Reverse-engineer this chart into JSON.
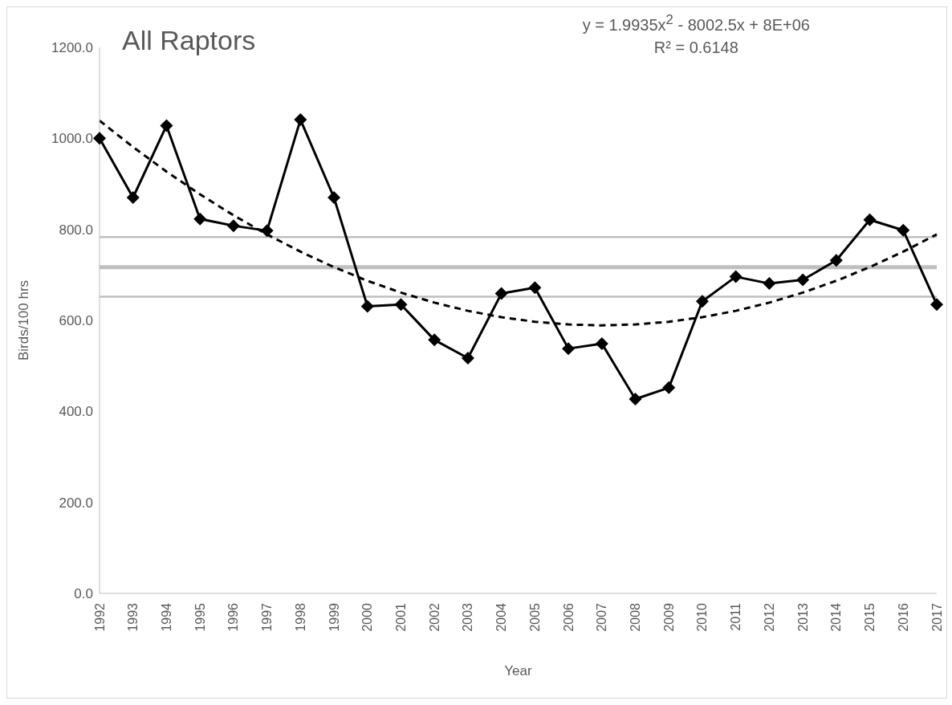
{
  "chart_data": {
    "type": "line",
    "title": "All Raptors",
    "xlabel": "Year",
    "ylabel": "Birds/100 hrs",
    "categories": [
      "1992",
      "1993",
      "1994",
      "1995",
      "1996",
      "1997",
      "1998",
      "1999",
      "2000",
      "2001",
      "2002",
      "2003",
      "2004",
      "2005",
      "2006",
      "2007",
      "2008",
      "2009",
      "2010",
      "2011",
      "2012",
      "2013",
      "2014",
      "2015",
      "2016",
      "2017"
    ],
    "series": [
      {
        "color": "#000000",
        "marker": "diamond",
        "line_style": "solid",
        "values": [
          1000,
          870,
          1028,
          823,
          808,
          797,
          1041,
          870,
          631,
          635,
          557,
          517,
          659,
          672,
          538,
          549,
          427,
          452,
          642,
          696,
          681,
          689,
          732,
          821,
          798,
          635
        ]
      },
      {
        "color": "#000000",
        "marker": "none",
        "line_style": "dashed",
        "values": [
          1039,
          981,
          927,
          877,
          831,
          789,
          751,
          717,
          687,
          661,
          639,
          621,
          607,
          597,
          591,
          589,
          591,
          597,
          607,
          621,
          639,
          661,
          687,
          717,
          751,
          789
        ]
      }
    ],
    "ylim": [
      0,
      1200
    ],
    "yticks": [
      {
        "value": 0,
        "label": "0.0"
      },
      {
        "value": 200,
        "label": "200.0"
      },
      {
        "value": 400,
        "label": "400.0"
      },
      {
        "value": 600,
        "label": "600.0"
      },
      {
        "value": 800,
        "label": "800.0"
      },
      {
        "value": 1000,
        "label": "1000.0"
      },
      {
        "value": 1200,
        "label": "1200.0"
      }
    ],
    "ref_lines": [
      {
        "axis": "y",
        "value": 783,
        "color": "#bfbfbf"
      },
      {
        "axis": "y",
        "value": 717,
        "color": "#bfbfbf"
      },
      {
        "axis": "y",
        "value": 652,
        "color": "#bfbfbf"
      }
    ],
    "annotations": [
      "y = 1.9935x$^{2}$ - 8002.5x + 8E+06",
      "R² = 0.6148"
    ],
    "grid": false
  }
}
